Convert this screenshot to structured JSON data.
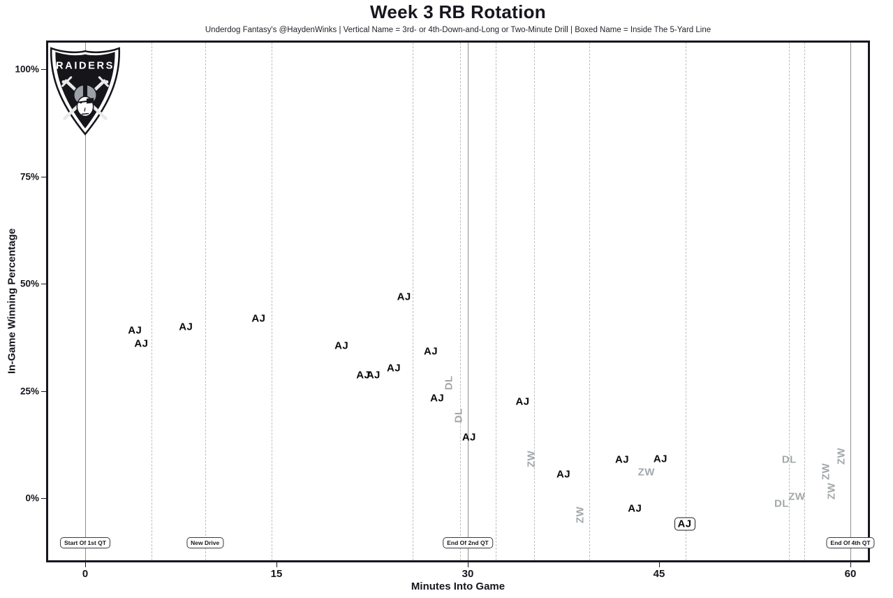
{
  "chart_data": {
    "type": "scatter",
    "title": "Week 3 RB Rotation",
    "subtitle": "Underdog Fantasy's @HaydenWinks | Vertical Name = 3rd- or 4th-Down-and-Long or Two-Minute Drill | Boxed Name = Inside The 5-Yard Line",
    "xlabel": "Minutes Into Game",
    "ylabel": "In-Game Winning Percentage",
    "x_ticks": [
      0,
      15,
      30,
      45,
      60
    ],
    "y_ticks": [
      0,
      25,
      50,
      75,
      100
    ],
    "xlim": [
      -3,
      61.6
    ],
    "ylim": [
      -15,
      105
    ],
    "grid": "vertical-event-lines-only",
    "legend_position": "none",
    "annotations": [
      {
        "x": 0,
        "style": "solid",
        "label": "Start Of 1st QT"
      },
      {
        "x": 5.2,
        "style": "dashed"
      },
      {
        "x": 9.4,
        "style": "dashed",
        "label": "New Drive"
      },
      {
        "x": 14.6,
        "style": "dashed"
      },
      {
        "x": 25.7,
        "style": "dashed"
      },
      {
        "x": 29.4,
        "style": "dashed"
      },
      {
        "x": 30,
        "style": "solid",
        "label": "End Of 2nd QT"
      },
      {
        "x": 32.2,
        "style": "dashed"
      },
      {
        "x": 35.2,
        "style": "dashed"
      },
      {
        "x": 39.5,
        "style": "dashed"
      },
      {
        "x": 47.1,
        "style": "dashed"
      },
      {
        "x": 55.2,
        "style": "dashed"
      },
      {
        "x": 56.4,
        "style": "dashed"
      },
      {
        "x": 60,
        "style": "solid",
        "label": "End Of 4th QT"
      }
    ],
    "points": [
      {
        "x": 3.9,
        "pct": 39.1,
        "label": "AJ",
        "style": "black",
        "orientation": "h",
        "boxed": false
      },
      {
        "x": 4.4,
        "pct": 36.0,
        "label": "AJ",
        "style": "black",
        "orientation": "h",
        "boxed": false
      },
      {
        "x": 7.9,
        "pct": 39.9,
        "label": "AJ",
        "style": "black",
        "orientation": "h",
        "boxed": false
      },
      {
        "x": 13.6,
        "pct": 41.9,
        "label": "AJ",
        "style": "black",
        "orientation": "h",
        "boxed": false
      },
      {
        "x": 20.1,
        "pct": 35.5,
        "label": "AJ",
        "style": "black",
        "orientation": "h",
        "boxed": false
      },
      {
        "x": 21.8,
        "pct": 28.7,
        "label": "AJ",
        "style": "black",
        "orientation": "h",
        "boxed": false
      },
      {
        "x": 22.6,
        "pct": 28.7,
        "label": "AJ",
        "style": "black",
        "orientation": "h",
        "boxed": false
      },
      {
        "x": 24.2,
        "pct": 30.3,
        "label": "AJ",
        "style": "black",
        "orientation": "h",
        "boxed": false
      },
      {
        "x": 25.0,
        "pct": 46.9,
        "label": "AJ",
        "style": "black",
        "orientation": "h",
        "boxed": false
      },
      {
        "x": 27.1,
        "pct": 34.2,
        "label": "AJ",
        "style": "black",
        "orientation": "h",
        "boxed": false
      },
      {
        "x": 28.5,
        "pct": 26.9,
        "label": "DL",
        "style": "gray",
        "orientation": "v",
        "boxed": false
      },
      {
        "x": 27.6,
        "pct": 23.3,
        "label": "AJ",
        "style": "black",
        "orientation": "h",
        "boxed": false
      },
      {
        "x": 29.3,
        "pct": 19.2,
        "label": "DL",
        "style": "gray",
        "orientation": "v",
        "boxed": false
      },
      {
        "x": 30.1,
        "pct": 14.2,
        "label": "AJ",
        "style": "black",
        "orientation": "h",
        "boxed": false
      },
      {
        "x": 34.3,
        "pct": 22.5,
        "label": "AJ",
        "style": "black",
        "orientation": "h",
        "boxed": false
      },
      {
        "x": 35.0,
        "pct": 9.1,
        "label": "ZW",
        "style": "gray",
        "orientation": "v",
        "boxed": false
      },
      {
        "x": 37.5,
        "pct": 5.5,
        "label": "AJ",
        "style": "black",
        "orientation": "h",
        "boxed": false
      },
      {
        "x": 38.8,
        "pct": -3.9,
        "label": "ZW",
        "style": "gray",
        "orientation": "v",
        "boxed": false
      },
      {
        "x": 42.1,
        "pct": 9.0,
        "label": "AJ",
        "style": "black",
        "orientation": "h",
        "boxed": false
      },
      {
        "x": 44.0,
        "pct": 6.0,
        "label": "ZW",
        "style": "gray",
        "orientation": "h",
        "boxed": false
      },
      {
        "x": 45.1,
        "pct": 9.1,
        "label": "AJ",
        "style": "black",
        "orientation": "h",
        "boxed": false
      },
      {
        "x": 43.1,
        "pct": -2.4,
        "label": "AJ",
        "style": "black",
        "orientation": "h",
        "boxed": false
      },
      {
        "x": 47.0,
        "pct": -6.0,
        "label": "AJ",
        "style": "black",
        "orientation": "h",
        "boxed": true
      },
      {
        "x": 55.2,
        "pct": 9.0,
        "label": "DL",
        "style": "gray",
        "orientation": "h",
        "boxed": false
      },
      {
        "x": 54.6,
        "pct": -1.3,
        "label": "DL",
        "style": "gray",
        "orientation": "h",
        "boxed": false
      },
      {
        "x": 55.8,
        "pct": 0.4,
        "label": "ZW",
        "style": "gray",
        "orientation": "h",
        "boxed": false
      },
      {
        "x": 58.1,
        "pct": 6.2,
        "label": "ZW",
        "style": "gray",
        "orientation": "v",
        "boxed": false
      },
      {
        "x": 58.5,
        "pct": 1.7,
        "label": "ZW",
        "style": "gray",
        "orientation": "v",
        "boxed": false
      },
      {
        "x": 59.3,
        "pct": 9.8,
        "label": "ZW",
        "style": "gray",
        "orientation": "v",
        "boxed": false
      }
    ]
  },
  "logo": {
    "team_name": "RAIDERS"
  },
  "colors": {
    "player_black": "#0b0b0d",
    "player_gray": "#a3a8ab",
    "dashed_line": "#bdbdbd",
    "solid_line": "#8f8f8f",
    "plot_border": "#16161f",
    "text": "#16161f"
  }
}
